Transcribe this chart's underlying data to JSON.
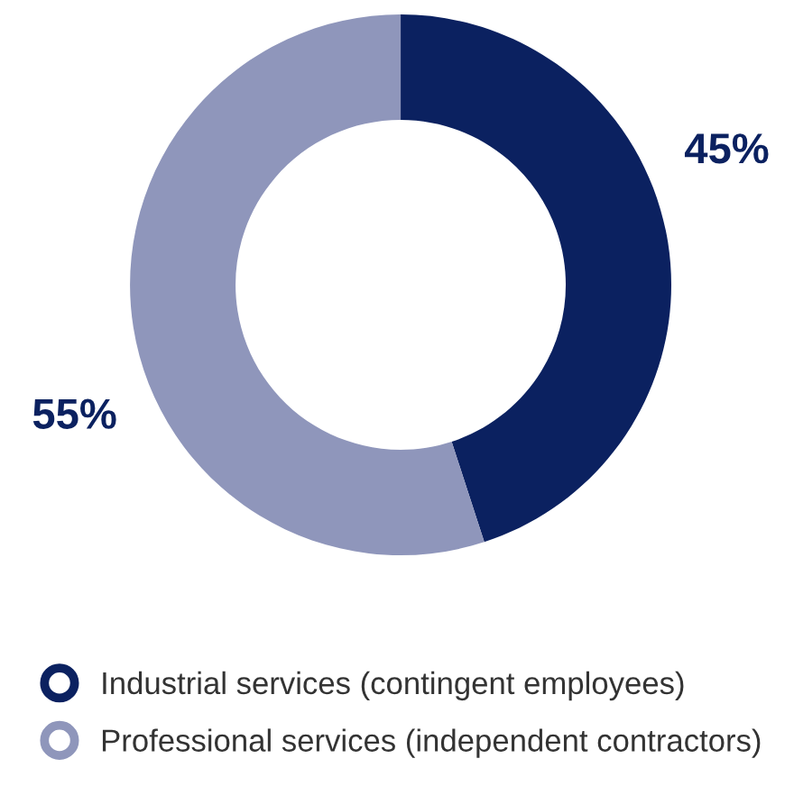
{
  "chart_data": {
    "type": "donut",
    "categories": [
      "Industrial services (contingent employees)",
      "Professional services (independent contractors)"
    ],
    "values": [
      45,
      55
    ],
    "colors": [
      "#0b2160",
      "#8f96bb"
    ],
    "value_labels": [
      "45%",
      "55%"
    ],
    "legend": "bottom"
  }
}
